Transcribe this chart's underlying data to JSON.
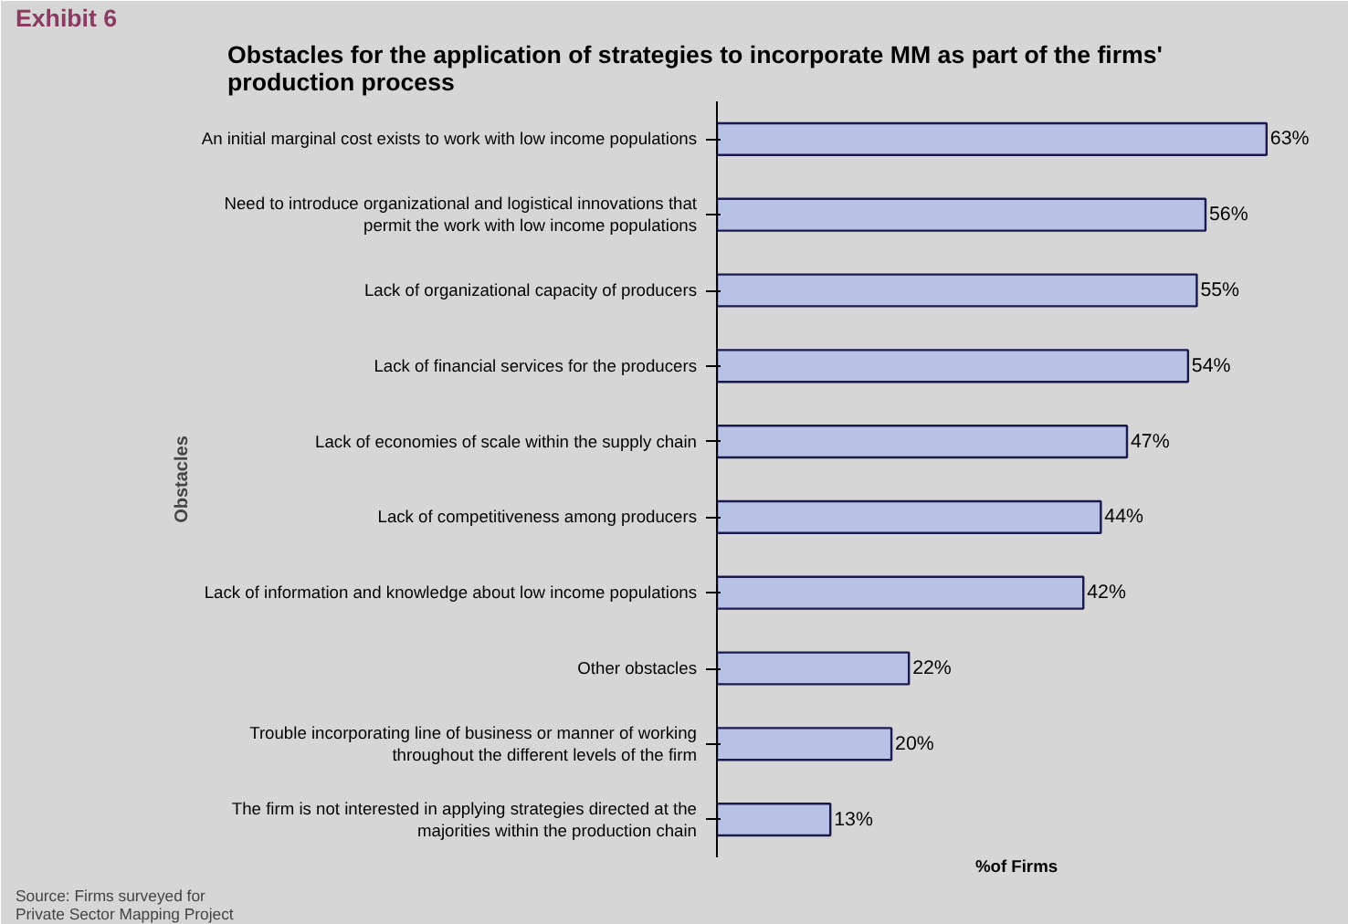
{
  "chart_data": {
    "type": "bar",
    "orientation": "horizontal",
    "title": "Obstacles for the application of strategies to incorporate MM as part of the firms'\nproduction process",
    "ylabel": "Obstacles",
    "xlabel": "%of Firms",
    "annotations": [
      "Exhibit 6",
      "Source: Firms surveyed for\nPrivate Sector Mapping Project"
    ],
    "categories": [
      "An initial marginal cost exists to work with low income populations",
      "Need to introduce organizational and logistical innovations that\npermit the work with low income populations",
      "Lack of organizational capacity of producers",
      "Lack of financial services for the producers",
      "Lack of economies of scale within the supply chain",
      "Lack of competitiveness among producers",
      "Lack of information and knowledge about low income populations",
      "Other obstacles",
      "Trouble incorporating line of business or manner of working\nthroughout the different levels of the firm",
      "The firm is not interested in applying strategies directed at the\nmajorities within the production chain"
    ],
    "values": [
      63,
      56,
      55,
      54,
      47,
      44,
      42,
      22,
      20,
      13
    ],
    "value_labels": [
      "63%",
      "56%",
      "55%",
      "54%",
      "47%",
      "44%",
      "42%",
      "22%",
      "20%",
      "13%"
    ],
    "color": "#b8c2e4",
    "grid": false,
    "tick_labels": "y"
  }
}
